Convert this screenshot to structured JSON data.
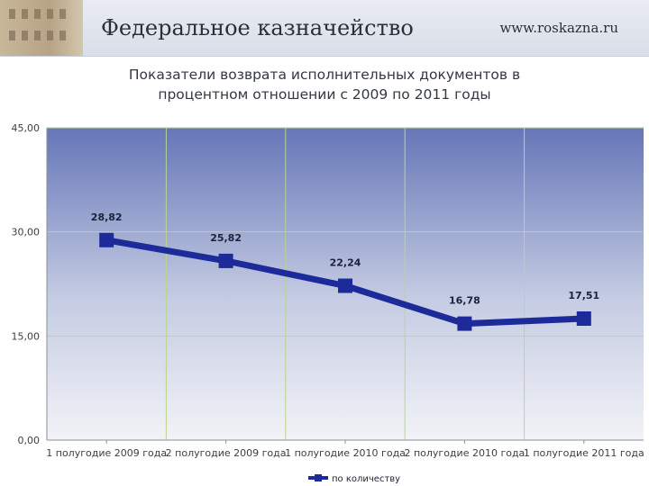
{
  "header": {
    "org_name": "Федеральное казначейство",
    "site_url": "www.roskazna.ru"
  },
  "chart_data": {
    "type": "line",
    "title_lines": [
      "Показатели возврата исполнительных документов в",
      "процентном отношении с 2009 по 2011 годы"
    ],
    "categories": [
      "1 полугодие 2009 года",
      "2 полугодие 2009 года",
      "1 полугодие 2010 года",
      "2 полугодие 2010 года",
      "1 полугодие 2011 года"
    ],
    "series": [
      {
        "name": "по количеству",
        "values": [
          28.82,
          25.82,
          22.24,
          16.78,
          17.51
        ],
        "labels": [
          "28,82",
          "25,82",
          "22,24",
          "16,78",
          "17,51"
        ]
      }
    ],
    "y_ticks": [
      {
        "value": 0,
        "label": "0,00"
      },
      {
        "value": 15,
        "label": "15,00"
      },
      {
        "value": 30,
        "label": "30,00"
      },
      {
        "value": 45,
        "label": "45,00"
      }
    ],
    "ylim": [
      0,
      45
    ],
    "grid": true,
    "legend_position": "bottom",
    "colors": {
      "line": "#1c2b99",
      "marker": "#1c2b99",
      "grid": "#b9d68a",
      "plot_top": "#6676b8",
      "plot_bottom": "#f2f3f7"
    }
  }
}
